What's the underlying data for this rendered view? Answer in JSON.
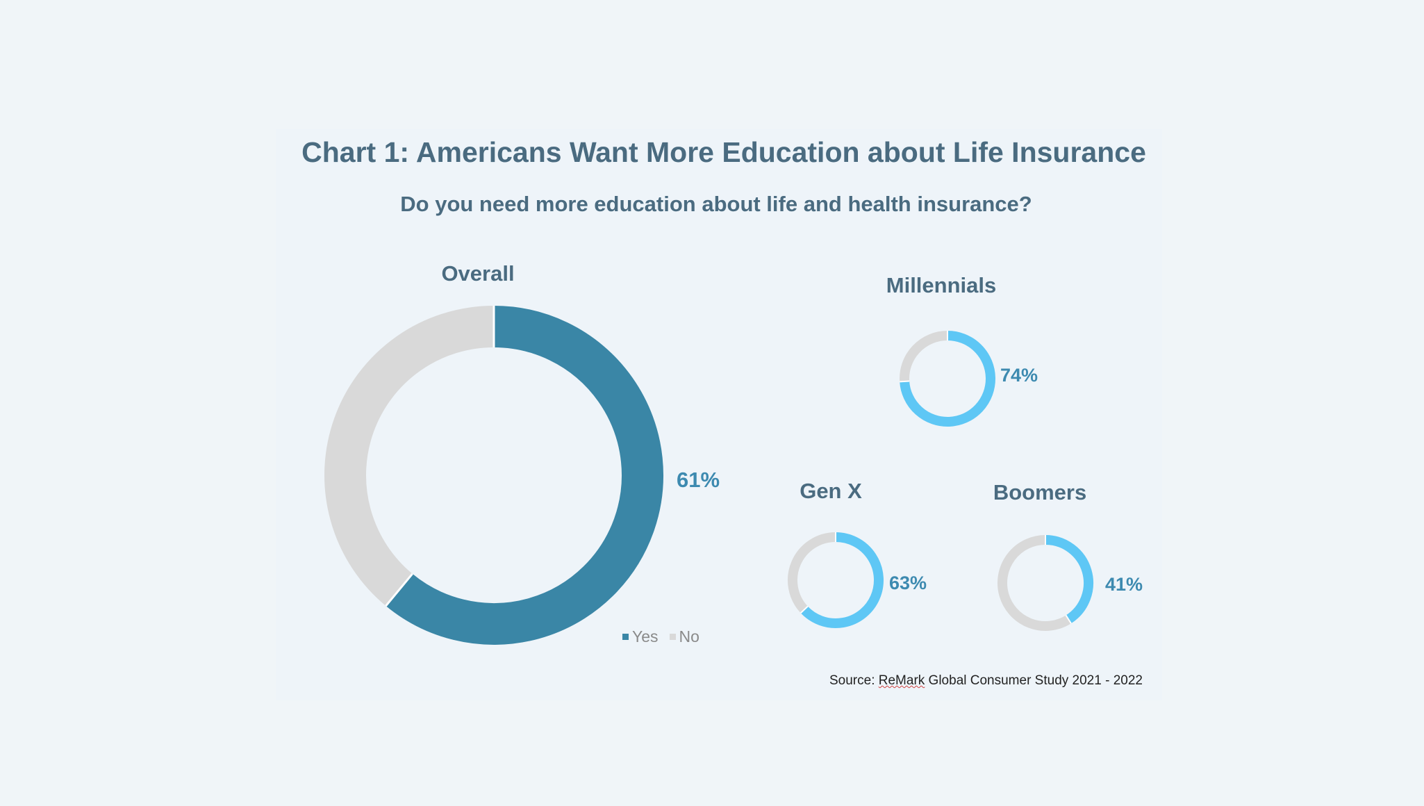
{
  "chart_data": {
    "type": "pie",
    "title": "Chart 1: Americans Want More Education about Life Insurance",
    "subtitle": "Do you need more education about life and health insurance?",
    "legend": {
      "placement": "bottom-right",
      "entries": [
        "Yes",
        "No"
      ]
    },
    "colors": {
      "overall_yes": "#3a86a6",
      "group_yes": "#5ec7f5",
      "no": "#d9d9d9"
    },
    "rings": [
      {
        "name": "Overall",
        "yes": 61,
        "label": "61%"
      },
      {
        "name": "Millennials",
        "yes": 74,
        "label": "74%"
      },
      {
        "name": "Gen X",
        "yes": 63,
        "label": "63%"
      },
      {
        "name": "Boomers",
        "yes": 41,
        "label": "41%"
      }
    ],
    "source": {
      "prefix": "Source: ",
      "brand": "ReMark",
      "suffix": " Global Consumer Study 2021 - 2022"
    }
  }
}
